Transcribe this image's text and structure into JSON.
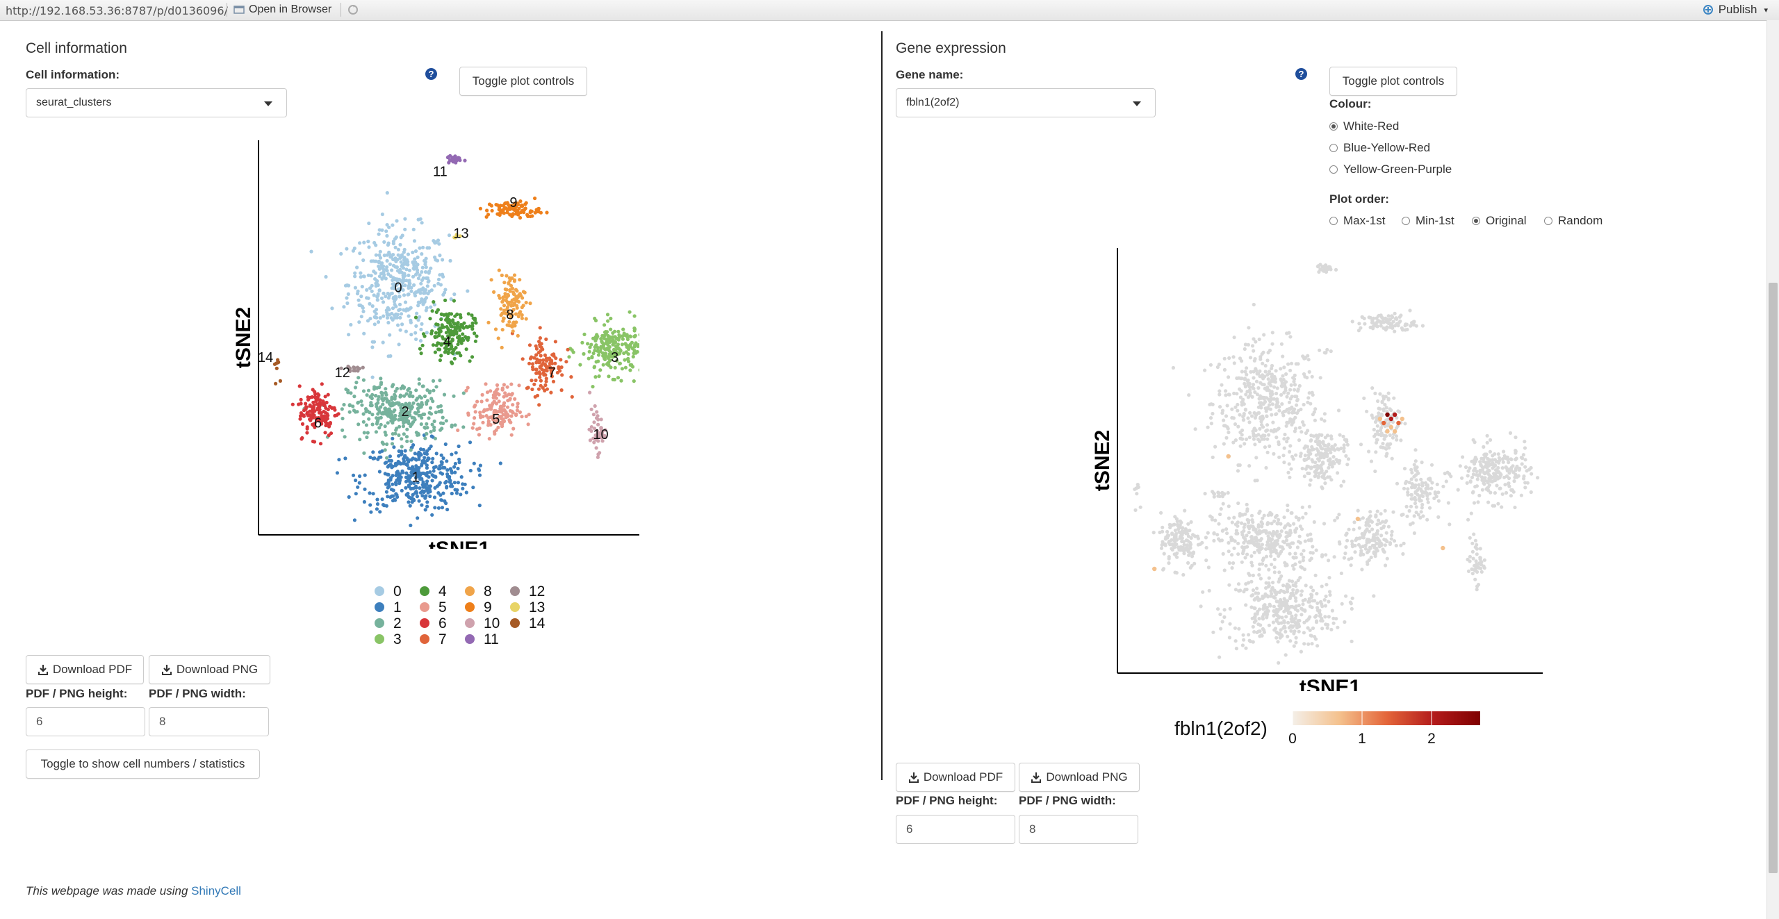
{
  "browser": {
    "url": "http://192.168.53.36:8787/p/d0136096/",
    "open_in_browser": "Open in Browser",
    "publish": "Publish"
  },
  "left": {
    "title": "Cell information",
    "select_label": "Cell information:",
    "select_value": "seurat_clusters",
    "help": "?",
    "toggle_controls": "Toggle plot controls",
    "chart_xlabel": "tSNE1",
    "chart_ylabel": "tSNE2",
    "download_pdf": "Download PDF",
    "download_png": "Download PNG",
    "height_label": "PDF / PNG height:",
    "width_label": "PDF / PNG width:",
    "height_value": "6",
    "width_value": "8",
    "toggle_stats": "Toggle to show cell numbers / statistics"
  },
  "right": {
    "title": "Gene expression",
    "select_label": "Gene name:",
    "select_value": "fbln1(2of2)",
    "help": "?",
    "toggle_controls": "Toggle plot controls",
    "colour_label": "Colour:",
    "colour_options": [
      "White-Red",
      "Blue-Yellow-Red",
      "Yellow-Green-Purple"
    ],
    "colour_selected": "White-Red",
    "order_label": "Plot order:",
    "order_options": [
      "Max-1st",
      "Min-1st",
      "Original",
      "Random"
    ],
    "order_selected": "Original",
    "chart_xlabel": "tSNE1",
    "chart_ylabel": "tSNE2",
    "colorbar_title": "fbln1(2of2)",
    "colorbar_ticks": [
      "0",
      "1",
      "2"
    ],
    "download_pdf": "Download PDF",
    "download_png": "Download PNG",
    "height_label": "PDF / PNG height:",
    "width_label": "PDF / PNG width:",
    "height_value": "6",
    "width_value": "8"
  },
  "footer": {
    "prefix": "This webpage was made using ",
    "link": "ShinyCell"
  },
  "chart_data": [
    {
      "type": "scatter",
      "xlabel": "tSNE1",
      "ylabel": "tSNE2",
      "grid": false,
      "legend_position": "bottom",
      "clusters": [
        {
          "name": "0",
          "color": "#a6cbe3",
          "cx": -20,
          "cy": 25,
          "sx": 13,
          "sy": 13,
          "n": 420
        },
        {
          "name": "1",
          "color": "#3d7fbd",
          "cx": -15,
          "cy": -25,
          "sx": 14,
          "sy": 8,
          "n": 360
        },
        {
          "name": "2",
          "color": "#76b29c",
          "cx": -20,
          "cy": -8,
          "sx": 13,
          "sy": 7,
          "n": 320
        },
        {
          "name": "3",
          "color": "#89c466",
          "cx": 42,
          "cy": 8,
          "sx": 9,
          "sy": 6,
          "n": 230
        },
        {
          "name": "4",
          "color": "#4d9a3a",
          "cx": -5,
          "cy": 12,
          "sx": 6,
          "sy": 6,
          "n": 170
        },
        {
          "name": "5",
          "color": "#e99a8e",
          "cx": 8,
          "cy": -8,
          "sx": 6,
          "sy": 6,
          "n": 150
        },
        {
          "name": "6",
          "color": "#d8363a",
          "cx": -43,
          "cy": -8,
          "sx": 5,
          "sy": 6,
          "n": 130
        },
        {
          "name": "7",
          "color": "#e0643a",
          "cx": 22,
          "cy": 4,
          "sx": 5,
          "sy": 7,
          "n": 110
        },
        {
          "name": "8",
          "color": "#f0a449",
          "cx": 12,
          "cy": 20,
          "sx": 4,
          "sy": 7,
          "n": 110
        },
        {
          "name": "9",
          "color": "#ee7f1a",
          "cx": 13,
          "cy": 44,
          "sx": 7,
          "sy": 2,
          "n": 90
        },
        {
          "name": "10",
          "color": "#cfa2ad",
          "cx": 37,
          "cy": -13,
          "sx": 2,
          "sy": 5,
          "n": 45
        },
        {
          "name": "11",
          "color": "#9369b3",
          "cx": -4,
          "cy": 57,
          "sx": 2,
          "sy": 1,
          "n": 25
        },
        {
          "name": "12",
          "color": "#a08c90",
          "cx": -33,
          "cy": 3,
          "sx": 3,
          "sy": 1,
          "n": 14
        },
        {
          "name": "13",
          "color": "#e8d466",
          "cx": -3,
          "cy": 37,
          "sx": 1,
          "sy": 1,
          "n": 5
        },
        {
          "name": "14",
          "color": "#a65a25",
          "cx": -55,
          "cy": 4,
          "sx": 1,
          "sy": 3,
          "n": 8
        }
      ],
      "label_positions": [
        {
          "name": "0",
          "x": -20,
          "y": 24
        },
        {
          "name": "1",
          "x": -15,
          "y": -25
        },
        {
          "name": "2",
          "x": -18,
          "y": -8
        },
        {
          "name": "3",
          "x": 42,
          "y": 6
        },
        {
          "name": "4",
          "x": -6,
          "y": 10
        },
        {
          "name": "5",
          "x": 8,
          "y": -10
        },
        {
          "name": "6",
          "x": -43,
          "y": -11
        },
        {
          "name": "7",
          "x": 24,
          "y": 2
        },
        {
          "name": "8",
          "x": 12,
          "y": 17
        },
        {
          "name": "9",
          "x": 13,
          "y": 46
        },
        {
          "name": "10",
          "x": 38,
          "y": -14
        },
        {
          "name": "11",
          "x": -8,
          "y": 54
        },
        {
          "name": "12",
          "x": -36,
          "y": 2
        },
        {
          "name": "13",
          "x": -2,
          "y": 38
        },
        {
          "name": "14",
          "x": -58,
          "y": 6
        }
      ],
      "xlim": [
        -60,
        55
      ],
      "ylim": [
        -40,
        62
      ]
    },
    {
      "type": "scatter",
      "xlabel": "tSNE1",
      "ylabel": "tSNE2",
      "grid": false,
      "color_scale": {
        "name": "White-Red",
        "min": 0,
        "max": 2.7,
        "colors": [
          "#f4efe8",
          "#f4c18d",
          "#e4663a",
          "#b31b1b",
          "#7f0000"
        ]
      },
      "base_color": "#d9d9d9",
      "expressing_cells": [
        {
          "x": 13,
          "y": 22,
          "value": 2.5
        },
        {
          "x": 14,
          "y": 21,
          "value": 2.1
        },
        {
          "x": 15,
          "y": 22,
          "value": 1.8
        },
        {
          "x": 12,
          "y": 20,
          "value": 1.4
        },
        {
          "x": 16,
          "y": 20,
          "value": 1.2
        },
        {
          "x": 14,
          "y": 19,
          "value": 0.9
        },
        {
          "x": 17,
          "y": 21,
          "value": 0.8
        },
        {
          "x": 13,
          "y": 18,
          "value": 0.6
        },
        {
          "x": 11,
          "y": 21,
          "value": 0.7
        },
        {
          "x": 15,
          "y": 18,
          "value": 0.5
        },
        {
          "x": -30,
          "y": 12,
          "value": 0.6
        },
        {
          "x": 28,
          "y": -10,
          "value": 1.0
        },
        {
          "x": -50,
          "y": -15,
          "value": 0.5
        },
        {
          "x": 5,
          "y": -3,
          "value": 0.5
        }
      ],
      "xlim": [
        -60,
        55
      ],
      "ylim": [
        -40,
        62
      ]
    }
  ]
}
